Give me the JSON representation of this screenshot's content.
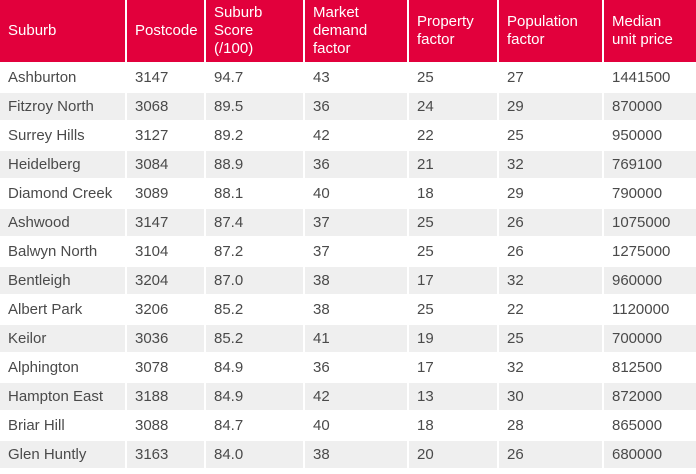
{
  "colors": {
    "header_bg": "#e2003c",
    "header_text": "#ffffff",
    "stripe_bg": "#efefef",
    "row_text": "#4a4a4a"
  },
  "chart_data": {
    "type": "table",
    "columns": [
      "Suburb",
      "Postcode",
      "Suburb Score (/100)",
      "Market demand factor",
      "Property factor",
      "Population factor",
      "Median unit price"
    ],
    "rows": [
      [
        "Ashburton",
        "3147",
        "94.7",
        "43",
        "25",
        "27",
        "1441500"
      ],
      [
        "Fitzroy North",
        "3068",
        "89.5",
        "36",
        "24",
        "29",
        "870000"
      ],
      [
        "Surrey Hills",
        "3127",
        "89.2",
        "42",
        "22",
        "25",
        "950000"
      ],
      [
        "Heidelberg",
        "3084",
        "88.9",
        "36",
        "21",
        "32",
        "769100"
      ],
      [
        "Diamond Creek",
        "3089",
        "88.1",
        "40",
        "18",
        "29",
        "790000"
      ],
      [
        "Ashwood",
        "3147",
        "87.4",
        "37",
        "25",
        "26",
        "1075000"
      ],
      [
        "Balwyn North",
        "3104",
        "87.2",
        "37",
        "25",
        "26",
        "1275000"
      ],
      [
        "Bentleigh",
        "3204",
        "87.0",
        "38",
        "17",
        "32",
        "960000"
      ],
      [
        "Albert Park",
        "3206",
        "85.2",
        "38",
        "25",
        "22",
        "1120000"
      ],
      [
        "Keilor",
        "3036",
        "85.2",
        "41",
        "19",
        "25",
        "700000"
      ],
      [
        "Alphington",
        "3078",
        "84.9",
        "36",
        "17",
        "32",
        "812500"
      ],
      [
        "Hampton East",
        "3188",
        "84.9",
        "42",
        "13",
        "30",
        "872000"
      ],
      [
        "Briar Hill",
        "3088",
        "84.7",
        "40",
        "18",
        "28",
        "865000"
      ],
      [
        "Glen Huntly",
        "3163",
        "84.0",
        "38",
        "20",
        "26",
        "680000"
      ]
    ]
  }
}
